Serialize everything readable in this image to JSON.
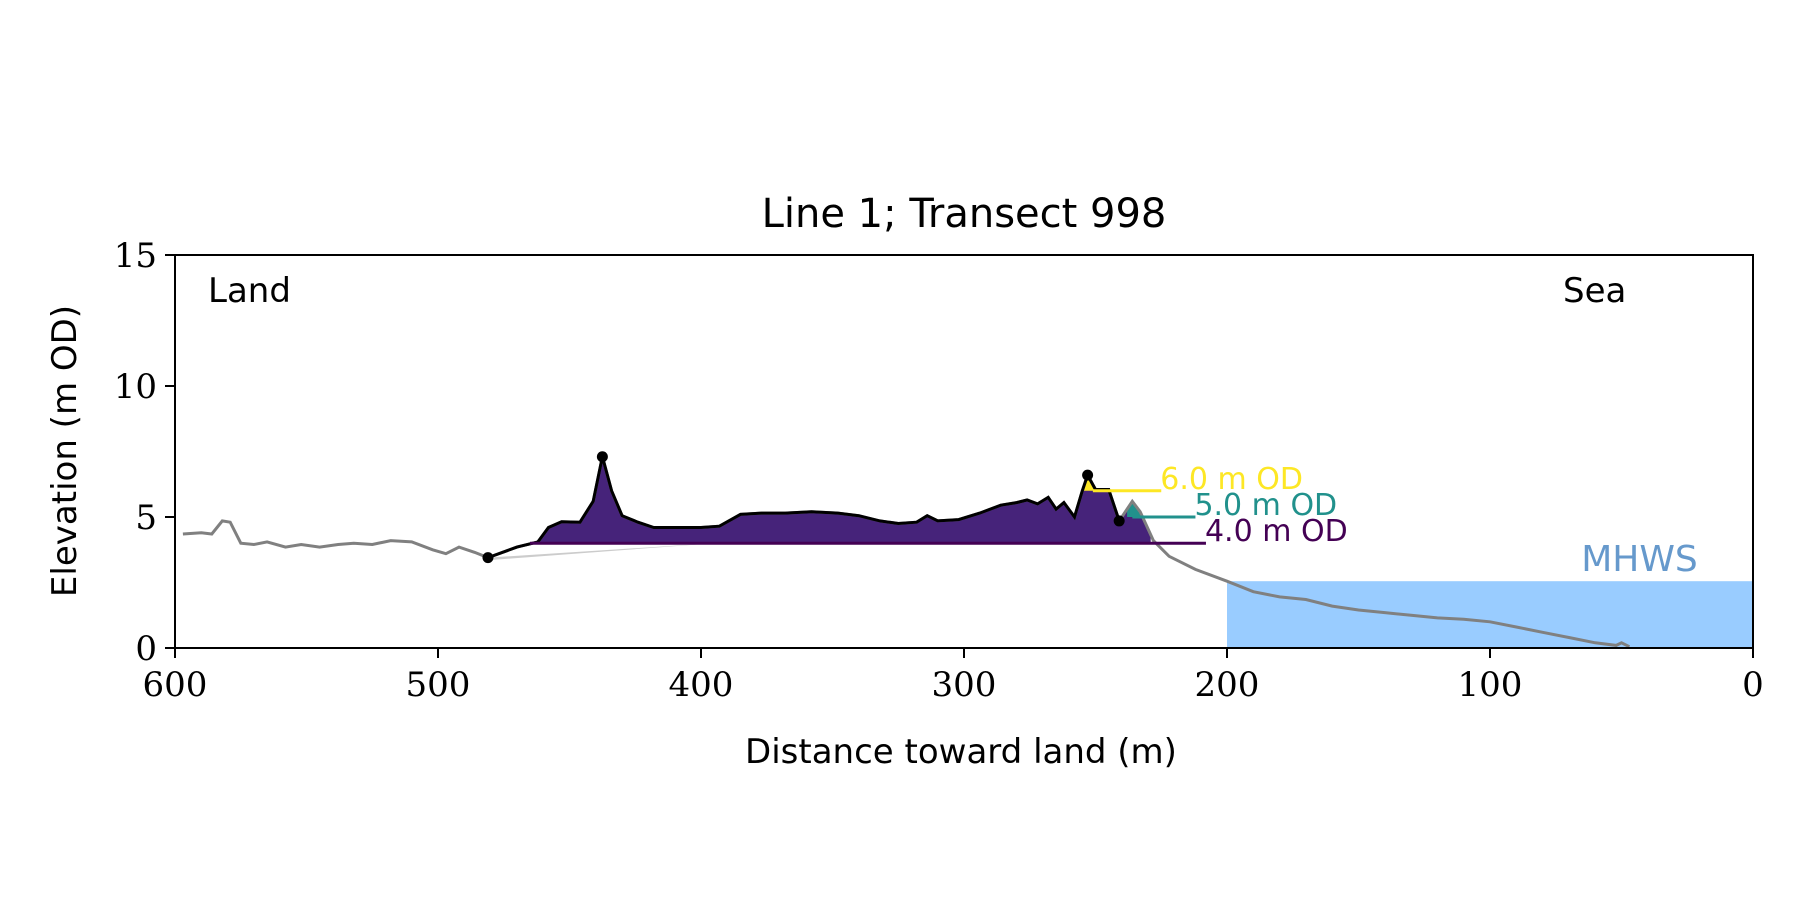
{
  "chart_data": {
    "type": "area",
    "title": "Line 1; Transect 998",
    "xlabel": "Distance toward land (m)",
    "ylabel": "Elevation (m OD)",
    "xlim": [
      600,
      0
    ],
    "ylim": [
      0,
      15
    ],
    "xticks": [
      600,
      500,
      400,
      300,
      200,
      100,
      0
    ],
    "xtick_labels": [
      "600",
      "500",
      "400",
      "300",
      "200",
      "100",
      "0"
    ],
    "yticks": [
      0,
      5,
      10,
      15
    ],
    "ytick_labels": [
      "0",
      "5",
      "10",
      "15"
    ],
    "grid": false,
    "annotations": {
      "land": "Land",
      "sea": "Sea",
      "mhws": "MHWS"
    },
    "mhws": {
      "label": "MHWS",
      "level": 2.55,
      "x_start": 200,
      "color": "#99ccff",
      "label_color": "#6699cc"
    },
    "profile": {
      "color": "#808080",
      "points": [
        [
          597,
          4.35
        ],
        [
          590,
          4.4
        ],
        [
          586,
          4.35
        ],
        [
          582,
          4.85
        ],
        [
          579,
          4.8
        ],
        [
          575,
          4.0
        ],
        [
          570,
          3.95
        ],
        [
          565,
          4.05
        ],
        [
          558,
          3.85
        ],
        [
          552,
          3.95
        ],
        [
          545,
          3.85
        ],
        [
          538,
          3.95
        ],
        [
          532,
          4.0
        ],
        [
          525,
          3.95
        ],
        [
          518,
          4.1
        ],
        [
          510,
          4.05
        ],
        [
          502,
          3.75
        ],
        [
          497,
          3.6
        ],
        [
          492,
          3.85
        ],
        [
          486,
          3.65
        ],
        [
          481,
          3.45
        ],
        [
          470,
          3.85
        ],
        [
          462,
          4.05
        ],
        [
          458,
          4.6
        ],
        [
          453,
          4.82
        ],
        [
          446,
          4.8
        ],
        [
          441,
          5.6
        ],
        [
          437.5,
          7.3
        ],
        [
          434,
          6.0
        ],
        [
          430,
          5.05
        ],
        [
          424,
          4.8
        ],
        [
          418,
          4.6
        ],
        [
          410,
          4.6
        ],
        [
          400,
          4.6
        ],
        [
          393,
          4.65
        ],
        [
          385,
          5.1
        ],
        [
          377,
          5.15
        ],
        [
          368,
          5.15
        ],
        [
          358,
          5.2
        ],
        [
          348,
          5.15
        ],
        [
          340,
          5.05
        ],
        [
          332,
          4.85
        ],
        [
          325,
          4.75
        ],
        [
          318,
          4.8
        ],
        [
          314,
          5.05
        ],
        [
          310,
          4.85
        ],
        [
          302,
          4.9
        ],
        [
          294,
          5.15
        ],
        [
          286,
          5.45
        ],
        [
          280,
          5.55
        ],
        [
          276,
          5.65
        ],
        [
          272,
          5.5
        ],
        [
          268,
          5.75
        ],
        [
          265,
          5.3
        ],
        [
          262,
          5.55
        ],
        [
          258,
          5.0
        ],
        [
          255,
          6.0
        ],
        [
          253,
          6.6
        ],
        [
          250,
          6.05
        ],
        [
          245,
          6.05
        ],
        [
          241,
          4.85
        ],
        [
          238,
          5.3
        ],
        [
          236,
          5.6
        ],
        [
          233,
          5.2
        ],
        [
          228,
          4.1
        ],
        [
          222,
          3.5
        ],
        [
          212,
          3.0
        ],
        [
          200,
          2.55
        ],
        [
          190,
          2.15
        ],
        [
          180,
          1.95
        ],
        [
          170,
          1.85
        ],
        [
          160,
          1.6
        ],
        [
          150,
          1.45
        ],
        [
          140,
          1.35
        ],
        [
          130,
          1.25
        ],
        [
          120,
          1.15
        ],
        [
          110,
          1.1
        ],
        [
          100,
          1.0
        ],
        [
          90,
          0.8
        ],
        [
          80,
          0.6
        ],
        [
          70,
          0.4
        ],
        [
          60,
          0.2
        ],
        [
          52,
          0.1
        ],
        [
          50,
          0.2
        ],
        [
          47,
          0.05
        ]
      ]
    },
    "dune_outline": {
      "color": "#000000",
      "x_range": [
        481,
        241
      ],
      "markers": [
        [
          481,
          3.45
        ],
        [
          437.5,
          7.3
        ],
        [
          253,
          6.6
        ],
        [
          241,
          4.85
        ]
      ]
    },
    "base_wedge": {
      "color": "#cccccc",
      "x_start": 481,
      "x_end": 395,
      "top": 4.0
    },
    "thresholds": [
      {
        "label": "6.0 m OD",
        "level": 6.0,
        "color": "#fde725",
        "fill_x": [
          255,
          248
        ],
        "line_x": [
          251,
          225
        ]
      },
      {
        "label": "5.0 m OD",
        "level": 5.0,
        "color": "#21918c",
        "fill_x": [
          238,
          233
        ],
        "line_x": [
          236,
          212
        ]
      },
      {
        "label": "4.0 m OD",
        "level": 4.0,
        "color": "#440154",
        "fill_x": [
          462,
          229
        ],
        "line_x": [
          465,
          208
        ]
      }
    ],
    "dune_fill_color": "#46237a"
  }
}
